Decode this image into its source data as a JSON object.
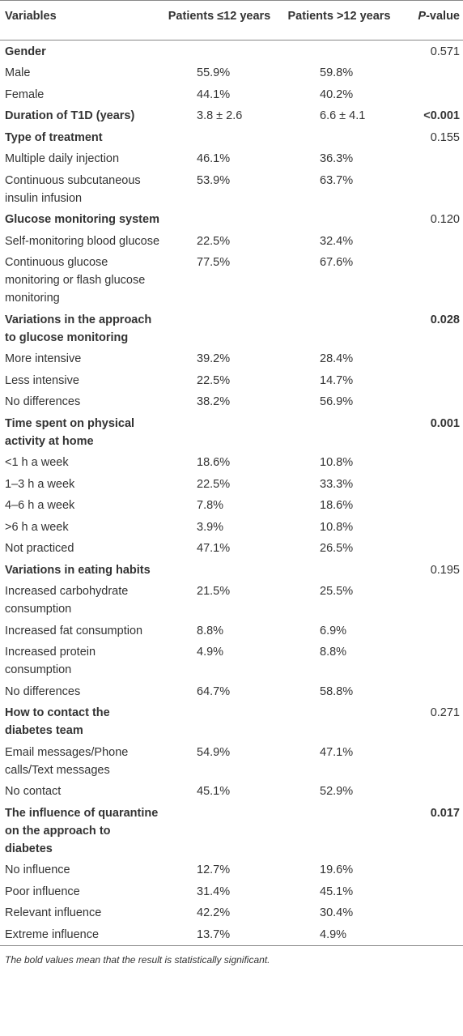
{
  "header": [
    "Variables",
    "Patients ≤12 years",
    "Patients >12 years",
    "P-value"
  ],
  "sections": [
    {
      "title": "Gender",
      "p": "0.571",
      "rows": [
        {
          "label": "Male",
          "values": [
            "55.9%",
            "59.8%"
          ]
        },
        {
          "label": "Female",
          "values": [
            "44.1%",
            "40.2%"
          ]
        }
      ]
    },
    {
      "title": "Duration of T1D (years)",
      "values": [
        "3.8 ± 2.6",
        "6.6 ± 4.1"
      ],
      "p": "<0.001",
      "significant": true
    },
    {
      "title": "Type of treatment",
      "p": "0.155",
      "rows": [
        {
          "label": "Multiple daily injection",
          "values": [
            "46.1%",
            "36.3%"
          ]
        },
        {
          "label": "Continuous subcutaneous insulin infusion",
          "values": [
            "53.9%",
            "63.7%"
          ]
        }
      ]
    },
    {
      "title": "Glucose monitoring system",
      "p": "0.120",
      "rows": [
        {
          "label": "Self-monitoring blood glucose",
          "values": [
            "22.5%",
            "32.4%"
          ]
        },
        {
          "label": "Continuous glucose monitoring or flash glucose monitoring",
          "values": [
            "77.5%",
            "67.6%"
          ]
        }
      ]
    },
    {
      "title": "Variations in the approach to glucose monitoring",
      "p": "0.028",
      "significant": true,
      "rows": [
        {
          "label": "More intensive",
          "values": [
            "39.2%",
            "28.4%"
          ]
        },
        {
          "label": "Less intensive",
          "values": [
            "22.5%",
            "14.7%"
          ]
        },
        {
          "label": "No differences",
          "values": [
            "38.2%",
            "56.9%"
          ]
        }
      ]
    },
    {
      "title": "Time spent on physical activity at home",
      "p": "0.001",
      "significant": true,
      "rows": [
        {
          "label": "<1 h a week",
          "values": [
            "18.6%",
            "10.8%"
          ]
        },
        {
          "label": "1–3 h a week",
          "values": [
            "22.5%",
            "33.3%"
          ]
        },
        {
          "label": "4–6 h a week",
          "values": [
            "7.8%",
            "18.6%"
          ]
        },
        {
          "label": ">6 h a week",
          "values": [
            "3.9%",
            "10.8%"
          ]
        },
        {
          "label": "Not practiced",
          "values": [
            "47.1%",
            "26.5%"
          ]
        }
      ]
    },
    {
      "title": "Variations in eating habits",
      "p": "0.195",
      "rows": [
        {
          "label": "Increased carbohydrate consumption",
          "values": [
            "21.5%",
            "25.5%"
          ]
        },
        {
          "label": "Increased fat consumption",
          "values": [
            "8.8%",
            "6.9%"
          ]
        },
        {
          "label": "Increased protein consumption",
          "values": [
            "4.9%",
            "8.8%"
          ]
        },
        {
          "label": "No differences",
          "values": [
            "64.7%",
            "58.8%"
          ]
        }
      ]
    },
    {
      "title": "How to contact the diabetes team",
      "p": "0.271",
      "rows": [
        {
          "label": "Email messages/Phone calls/Text messages",
          "values": [
            "54.9%",
            "47.1%"
          ]
        },
        {
          "label": "No contact",
          "values": [
            "45.1%",
            "52.9%"
          ]
        }
      ]
    },
    {
      "title": "The influence of quarantine on the approach to diabetes",
      "p": "0.017",
      "significant": true,
      "rows": [
        {
          "label": "No influence",
          "values": [
            "12.7%",
            "19.6%"
          ]
        },
        {
          "label": "Poor influence",
          "values": [
            "31.4%",
            "45.1%"
          ]
        },
        {
          "label": "Relevant influence",
          "values": [
            "42.2%",
            "30.4%"
          ]
        },
        {
          "label": "Extreme influence",
          "values": [
            "13.7%",
            "4.9%"
          ]
        }
      ]
    }
  ],
  "footnote": "The bold values mean that the result is statistically significant."
}
